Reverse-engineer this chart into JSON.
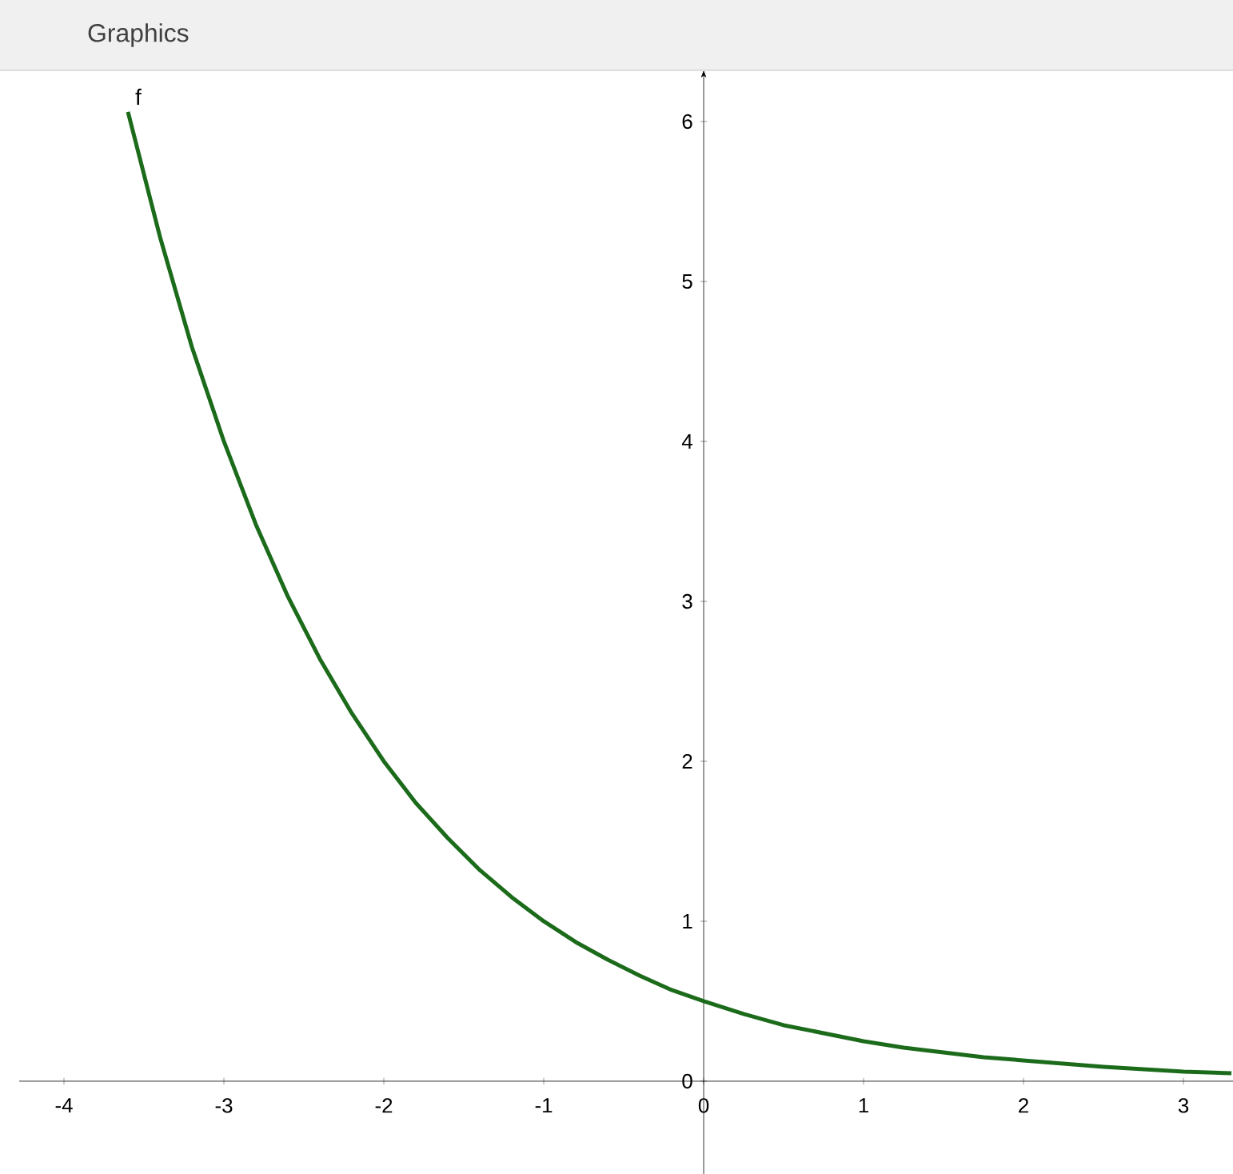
{
  "chart_data": {
    "type": "line",
    "title": "Graphics",
    "x": [
      -3.6,
      -3.4,
      -3.2,
      -3.0,
      -2.8,
      -2.6,
      -2.4,
      -2.2,
      -2.0,
      -1.8,
      -1.6,
      -1.4,
      -1.2,
      -1.0,
      -0.8,
      -0.6,
      -0.4,
      -0.2,
      0,
      0.25,
      0.5,
      0.75,
      1.0,
      1.25,
      1.5,
      1.75,
      2.0,
      2.5,
      3.0,
      3.3
    ],
    "series": [
      {
        "name": "f",
        "color": "#1b6b1b",
        "values": [
          6.06,
          5.28,
          4.59,
          4.0,
          3.48,
          3.03,
          2.64,
          2.3,
          2.0,
          1.74,
          1.52,
          1.32,
          1.15,
          1.0,
          0.87,
          0.76,
          0.66,
          0.57,
          0.5,
          0.42,
          0.35,
          0.3,
          0.25,
          0.21,
          0.18,
          0.15,
          0.13,
          0.09,
          0.06,
          0.05
        ]
      }
    ],
    "xlim": [
      -4.28,
      3.31
    ],
    "ylim": [
      -0.58,
      6.32
    ],
    "xticks": [
      -4,
      -3,
      -2,
      -1,
      0,
      1,
      2,
      3
    ],
    "yticks": [
      0,
      1,
      2,
      3,
      4,
      5,
      6
    ]
  }
}
